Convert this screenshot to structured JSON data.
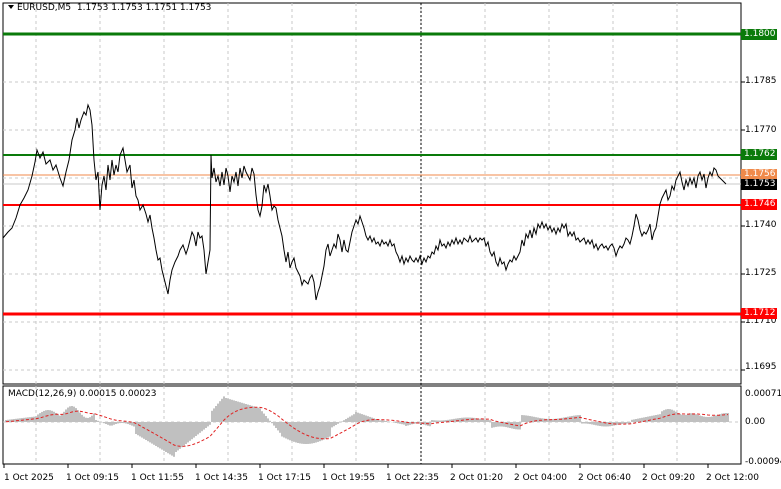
{
  "header": {
    "symbol": "EURUSD,M5",
    "ohlc": "1.1753 1.1753 1.1751 1.1753"
  },
  "macd": {
    "label": "MACD(12,26,9) 0.00015 0.00023",
    "axis": [
      "0.00071",
      "0.00",
      "-0.00094"
    ]
  },
  "price_axis": [
    "1.1785",
    "1.1770",
    "1.1740",
    "1.1725",
    "1.1710",
    "1.1695"
  ],
  "levels": [
    {
      "label": "1.1800",
      "color": "#0a7a0a"
    },
    {
      "label": "1.1762",
      "color": "#0a7a0a"
    },
    {
      "label": "1.1756",
      "color": "#f08a4b"
    },
    {
      "label": "1.1753",
      "color": "#000000"
    },
    {
      "label": "1.1746",
      "color": "#ff0000"
    },
    {
      "label": "1.1712",
      "color": "#ff0000"
    }
  ],
  "time_axis": [
    "1 Oct 2025",
    "1 Oct 09:15",
    "1 Oct 11:55",
    "1 Oct 14:35",
    "1 Oct 17:15",
    "1 Oct 19:55",
    "1 Oct 22:35",
    "2 Oct 01:20",
    "2 Oct 04:00",
    "2 Oct 06:40",
    "2 Oct 09:20",
    "2 Oct 12:00"
  ],
  "colors": {
    "price_line": "#000000",
    "histogram": "#c0c0c0",
    "signal": "#e02020",
    "grid": "#c8c8c8"
  }
}
